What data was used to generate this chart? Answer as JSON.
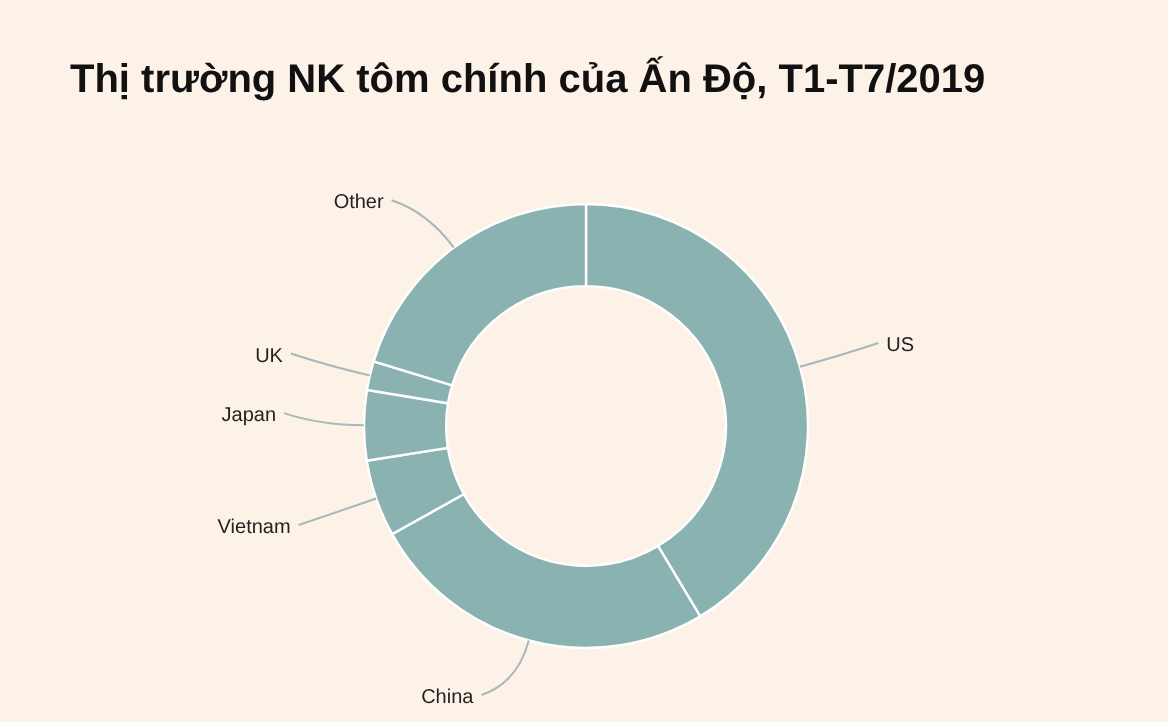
{
  "chart_data": {
    "type": "donut",
    "title": "Thị trường NK tôm chính của Ấn Độ, T1-T7/2019",
    "categories": [
      "US",
      "China",
      "Vietnam",
      "Japan",
      "UK",
      "Other"
    ],
    "values": [
      41.4,
      25.5,
      5.6,
      5.1,
      2.1,
      20.3
    ],
    "colors": [
      "#8ab2b0",
      "#8ab2b0",
      "#8ab2b0",
      "#8ab2b0",
      "#8ab2b0",
      "#8ab2b0"
    ]
  }
}
